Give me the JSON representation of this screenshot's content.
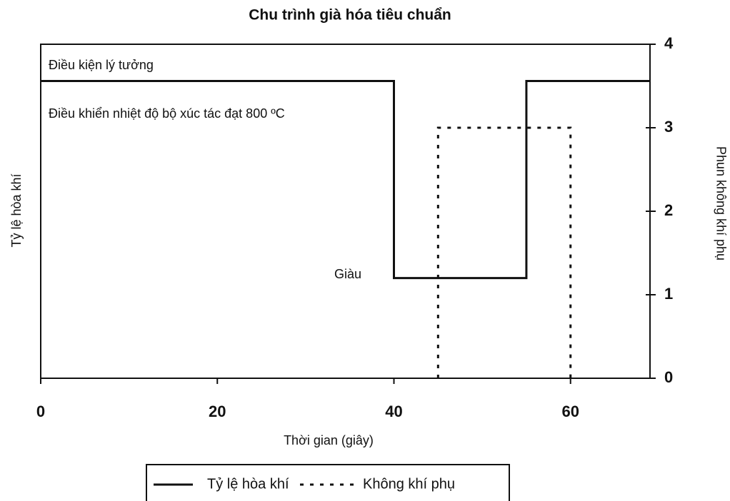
{
  "chart_data": {
    "type": "line",
    "title": "Chu trình già hóa tiêu chuẩn",
    "xlabel": "Thời gian (giây)",
    "ylabel": "Tỷ lệ hòa khí",
    "y2label": "Phun không khí phụ",
    "xlim": [
      0,
      69
    ],
    "xticks": [
      0,
      20,
      40,
      60
    ],
    "ylim": [
      0,
      4
    ],
    "y2lim": [
      0,
      4
    ],
    "y2ticks": [
      0,
      1,
      2,
      3,
      4
    ],
    "annotations": [
      "Điều kiện lý tưởng",
      "Điều khiển nhiệt độ bộ xúc tác đạt 800 ºC",
      "Giàu"
    ],
    "series": [
      {
        "name": "Tỷ lệ hòa khí",
        "color": "#111111",
        "style": "solid",
        "x": [
          0,
          40,
          40,
          55,
          55,
          69
        ],
        "values": [
          3.56,
          3.56,
          1.2,
          1.2,
          3.56,
          3.56
        ]
      },
      {
        "name": "Không khí phụ",
        "color": "#111111",
        "style": "dotted",
        "axis": "y2",
        "x": [
          45,
          45,
          60,
          60
        ],
        "values": [
          0,
          3,
          3,
          0
        ]
      }
    ]
  }
}
